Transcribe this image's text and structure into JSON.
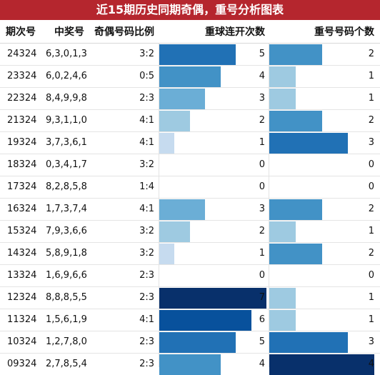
{
  "title": "近15期历史同期奇偶，重号分析图表",
  "columns": {
    "period": "期次号",
    "numbers": "中奖号",
    "ratio": "奇偶号码比例",
    "consecutive": "重球连开次数",
    "repeat": "重号号码个数"
  },
  "scale": {
    "consecutive_max": 7,
    "repeat_max": 4
  },
  "colors": {
    "title_bg": "#b5262e",
    "blue_scale": [
      "#dbe8f5",
      "#c6dbef",
      "#9ecae1",
      "#6baed6",
      "#4292c6",
      "#2171b5",
      "#08519c",
      "#08306b"
    ]
  },
  "rows": [
    {
      "period": "24324",
      "numbers": "6,3,0,1,3",
      "ratio": "3:2",
      "consecutive": 5,
      "repeat": 2
    },
    {
      "period": "23324",
      "numbers": "6,0,2,4,6",
      "ratio": "0:5",
      "consecutive": 4,
      "repeat": 1
    },
    {
      "period": "22324",
      "numbers": "8,4,9,9,8",
      "ratio": "2:3",
      "consecutive": 3,
      "repeat": 1
    },
    {
      "period": "21324",
      "numbers": "9,3,1,1,0",
      "ratio": "4:1",
      "consecutive": 2,
      "repeat": 2
    },
    {
      "period": "19324",
      "numbers": "3,7,3,6,1",
      "ratio": "4:1",
      "consecutive": 1,
      "repeat": 3
    },
    {
      "period": "18324",
      "numbers": "0,3,4,1,7",
      "ratio": "3:2",
      "consecutive": 0,
      "repeat": 0
    },
    {
      "period": "17324",
      "numbers": "8,2,8,5,8",
      "ratio": "1:4",
      "consecutive": 0,
      "repeat": 0
    },
    {
      "period": "16324",
      "numbers": "1,7,3,7,4",
      "ratio": "4:1",
      "consecutive": 3,
      "repeat": 2
    },
    {
      "period": "15324",
      "numbers": "7,9,3,6,6",
      "ratio": "3:2",
      "consecutive": 2,
      "repeat": 1
    },
    {
      "period": "14324",
      "numbers": "5,8,9,1,8",
      "ratio": "3:2",
      "consecutive": 1,
      "repeat": 2
    },
    {
      "period": "13324",
      "numbers": "1,6,9,6,6",
      "ratio": "2:3",
      "consecutive": 0,
      "repeat": 0
    },
    {
      "period": "12324",
      "numbers": "8,8,8,5,5",
      "ratio": "2:3",
      "consecutive": 7,
      "repeat": 1
    },
    {
      "period": "11324",
      "numbers": "1,5,6,1,9",
      "ratio": "4:1",
      "consecutive": 6,
      "repeat": 1
    },
    {
      "period": "10324",
      "numbers": "1,2,7,8,0",
      "ratio": "2:3",
      "consecutive": 5,
      "repeat": 3
    },
    {
      "period": "09324",
      "numbers": "2,7,8,5,4",
      "ratio": "2:3",
      "consecutive": 4,
      "repeat": 4
    }
  ]
}
